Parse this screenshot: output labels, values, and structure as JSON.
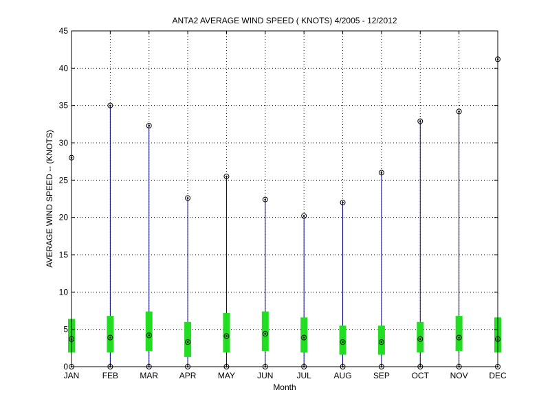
{
  "chart_data": {
    "type": "boxplot",
    "title": "ANTA2  AVERAGE WIND SPEED ( KNOTS) 4/2005 - 12/2012",
    "xlabel": "Month",
    "ylabel": "AVERAGE WIND SPEED -- (KNOTS)",
    "ylim": [
      0,
      45
    ],
    "yticks": [
      0,
      5,
      10,
      15,
      20,
      25,
      30,
      35,
      40,
      45
    ],
    "grid": true,
    "categories": [
      "JAN",
      "FEB",
      "MAR",
      "APR",
      "MAY",
      "JUN",
      "JUL",
      "AUG",
      "SEP",
      "OCT",
      "NOV",
      "DEC"
    ],
    "min": [
      0,
      0,
      0,
      0,
      0,
      0,
      0,
      0,
      0,
      0,
      0,
      0
    ],
    "q1": [
      1.9,
      1.9,
      2.1,
      1.3,
      1.9,
      2.1,
      1.9,
      1.6,
      1.6,
      1.9,
      2.1,
      1.9
    ],
    "median": [
      3.7,
      3.9,
      4.2,
      3.3,
      4.1,
      4.4,
      3.9,
      3.3,
      3.3,
      3.7,
      3.9,
      3.7
    ],
    "q3": [
      6.4,
      6.8,
      7.4,
      6.0,
      7.2,
      7.4,
      6.6,
      5.5,
      5.5,
      6.0,
      6.8,
      6.6
    ],
    "max": [
      28.0,
      35.0,
      32.3,
      22.6,
      25.5,
      22.4,
      20.2,
      22.0,
      26.0,
      32.9,
      34.2,
      41.2
    ],
    "colors": {
      "whisker": "#00008b",
      "box": "#22dd22",
      "marker": "#000000",
      "grid": "#000000"
    }
  }
}
